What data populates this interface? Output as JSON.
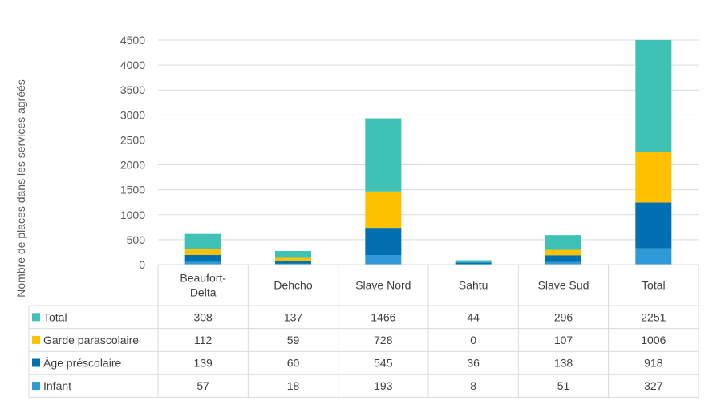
{
  "chart_data": {
    "type": "bar",
    "stacked": true,
    "ylabel": "Nombre de places dans les services agréés",
    "ylim": [
      0,
      4500
    ],
    "yticks": [
      0,
      500,
      1000,
      1500,
      2000,
      2500,
      3000,
      3500,
      4000,
      4500
    ],
    "grid": true,
    "categories": [
      "Beaufort-Delta",
      "Dehcho",
      "Slave Nord",
      "Sahtu",
      "Slave Sud",
      "Total"
    ],
    "category_display": [
      [
        "Beaufort-",
        "Delta"
      ],
      [
        "Dehcho"
      ],
      [
        "Slave Nord"
      ],
      [
        "Sahtu"
      ],
      [
        "Slave Sud"
      ],
      [
        "Total"
      ]
    ],
    "series": [
      {
        "name": "Infant",
        "color": "#2E9AD8",
        "values": [
          57,
          18,
          193,
          8,
          51,
          327
        ]
      },
      {
        "name": "Âge préscolaire",
        "color": "#0070B0",
        "values": [
          139,
          60,
          545,
          36,
          138,
          918
        ]
      },
      {
        "name": "Garde parascolaire",
        "color": "#FFC000",
        "values": [
          112,
          59,
          728,
          0,
          107,
          1006
        ]
      },
      {
        "name": "Total",
        "color": "#3FC1B6",
        "values": [
          308,
          137,
          1466,
          44,
          296,
          2251
        ]
      }
    ],
    "table_row_order": [
      "Total",
      "Garde parascolaire",
      "Âge préscolaire",
      "Infant"
    ],
    "legend": "data-table"
  }
}
